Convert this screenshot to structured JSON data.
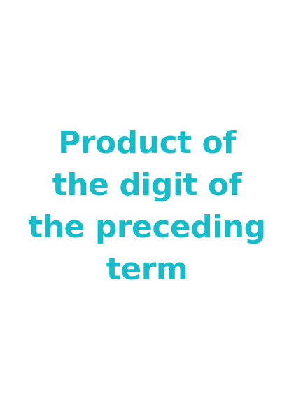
{
  "title": {
    "lines": [
      "Product of",
      "the digit of",
      "the preceding",
      "term"
    ],
    "color": "#17bccb"
  },
  "background": "#ffffff"
}
